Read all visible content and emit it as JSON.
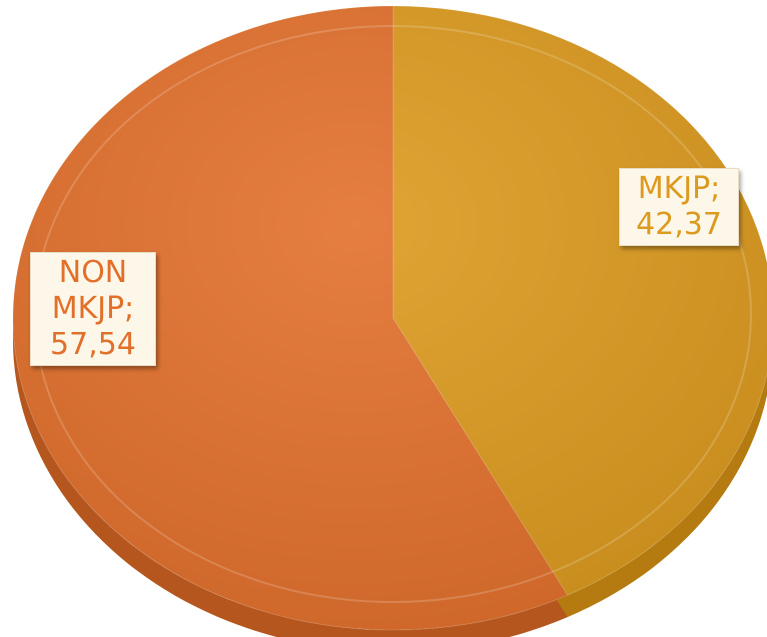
{
  "chart_data": {
    "type": "pie",
    "title": "",
    "start_angle_deg": 0,
    "direction": "clockwise",
    "style": "3d",
    "slices": [
      {
        "label": "MKJP",
        "value": 42.37,
        "display_value": "42,37",
        "color": "#dc9a1e",
        "side_color": "#b57a10"
      },
      {
        "label": "NON MKJP",
        "value": 57.54,
        "display_value": "57,54",
        "color": "#e2702b",
        "side_color": "#b4561e"
      }
    ],
    "data_labels": {
      "mkjp": {
        "line1": "MKJP;",
        "line2": "42,37",
        "color": "#dc9a1e"
      },
      "nonmkjp": {
        "line1": "NON",
        "line2": "MKJP;",
        "line3": "57,54",
        "color": "#e2702b"
      }
    }
  }
}
